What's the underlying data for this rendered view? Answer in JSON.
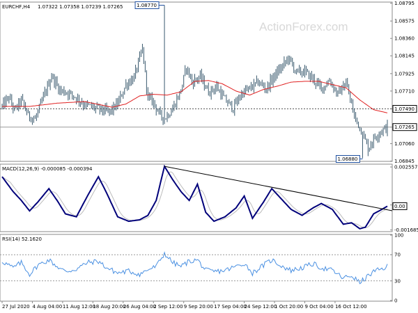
{
  "chart_data": [
    {
      "type": "candlestick",
      "title": "EURCHF,H4",
      "ohlc_text": "1.07322 1.07358 1.07239 1.07265",
      "watermark": "ActionForex.com",
      "ylim": [
        1.0685,
        1.088
      ],
      "y_ticks": [
        "1.08795",
        "1.08575",
        "1.08360",
        "1.08145",
        "1.07925",
        "1.07710",
        "1.07490",
        "1.07265",
        "1.07060",
        "1.06845"
      ],
      "y_tick_values": [
        1.08795,
        1.08575,
        1.0836,
        1.08145,
        1.07925,
        1.0771,
        1.0749,
        1.07265,
        1.0706,
        1.06845
      ],
      "high_label": "1.08770",
      "high_label_value": 1.0877,
      "low_label": "1.06880",
      "low_label_value": 1.0688,
      "level_label": "1.07490",
      "level_value": 1.0749,
      "current_label": "1.07265",
      "current_value": 1.07265,
      "close_keypoints": [
        [
          0,
          1.0752
        ],
        [
          5,
          1.0763
        ],
        [
          9,
          1.0747
        ],
        [
          14,
          1.076
        ],
        [
          19,
          1.0741
        ],
        [
          24,
          1.0736
        ],
        [
          30,
          1.0763
        ],
        [
          36,
          1.079
        ],
        [
          42,
          1.0772
        ],
        [
          48,
          1.0769
        ],
        [
          54,
          1.0763
        ],
        [
          60,
          1.0754
        ],
        [
          66,
          1.0751
        ],
        [
          72,
          1.0748
        ],
        [
          78,
          1.0745
        ],
        [
          84,
          1.0755
        ],
        [
          90,
          1.0779
        ],
        [
          96,
          1.0788
        ],
        [
          102,
          1.0823
        ],
        [
          106,
          1.0762
        ],
        [
          110,
          1.0758
        ],
        [
          114,
          1.0743
        ],
        [
          118,
          1.0737
        ],
        [
          124,
          1.0749
        ],
        [
          130,
          1.0772
        ],
        [
          134,
          1.0801
        ],
        [
          138,
          1.0782
        ],
        [
          144,
          1.0789
        ],
        [
          150,
          1.077
        ],
        [
          156,
          1.0776
        ],
        [
          162,
          1.076
        ],
        [
          168,
          1.075
        ],
        [
          174,
          1.0768
        ],
        [
          180,
          1.0774
        ],
        [
          186,
          1.0782
        ],
        [
          192,
          1.0774
        ],
        [
          198,
          1.079
        ],
        [
          204,
          1.0802
        ],
        [
          208,
          1.0812
        ],
        [
          214,
          1.0794
        ],
        [
          220,
          1.0795
        ],
        [
          226,
          1.0786
        ],
        [
          232,
          1.0774
        ],
        [
          238,
          1.0784
        ],
        [
          244,
          1.0767
        ],
        [
          250,
          1.0781
        ],
        [
          256,
          1.074
        ],
        [
          262,
          1.0719
        ],
        [
          266,
          1.07
        ],
        [
          270,
          1.0712
        ],
        [
          274,
          1.072
        ],
        [
          278,
          1.0724
        ],
        [
          280,
          1.07265
        ]
      ],
      "ma_keypoints": [
        [
          0,
          1.0752
        ],
        [
          20,
          1.0752
        ],
        [
          40,
          1.0756
        ],
        [
          60,
          1.0758
        ],
        [
          80,
          1.0751
        ],
        [
          90,
          1.0755
        ],
        [
          100,
          1.0765
        ],
        [
          110,
          1.0767
        ],
        [
          120,
          1.0766
        ],
        [
          130,
          1.077
        ],
        [
          140,
          1.0783
        ],
        [
          150,
          1.0784
        ],
        [
          160,
          1.078
        ],
        [
          170,
          1.0771
        ],
        [
          180,
          1.0766
        ],
        [
          190,
          1.0773
        ],
        [
          200,
          1.0777
        ],
        [
          210,
          1.0782
        ],
        [
          220,
          1.0783
        ],
        [
          230,
          1.0783
        ],
        [
          240,
          1.0779
        ],
        [
          250,
          1.0775
        ],
        [
          260,
          1.076
        ],
        [
          270,
          1.0748
        ],
        [
          280,
          1.0744
        ]
      ]
    },
    {
      "type": "line",
      "title": "MACD(12,26,9) -0.000085 -0.000394",
      "ylim": [
        -0.00175,
        0.0027
      ],
      "y_ticks": [
        "0.002557",
        "0.00",
        "-0.001685"
      ],
      "y_tick_values": [
        0.002557,
        0.0,
        -0.001685
      ],
      "current_label": "0.00",
      "current_value": -8.5e-05,
      "macd_keypoints": [
        [
          0,
          0.0019
        ],
        [
          8,
          0.0009
        ],
        [
          14,
          0.0003
        ],
        [
          20,
          -0.0004
        ],
        [
          26,
          0.0002
        ],
        [
          34,
          0.0011
        ],
        [
          40,
          0.0003
        ],
        [
          46,
          -0.0006
        ],
        [
          54,
          -0.0008
        ],
        [
          62,
          0.0006
        ],
        [
          70,
          0.0019
        ],
        [
          76,
          0.0008
        ],
        [
          84,
          -0.0008
        ],
        [
          92,
          -0.0011
        ],
        [
          100,
          -0.001
        ],
        [
          106,
          -0.0007
        ],
        [
          112,
          0.0003
        ],
        [
          118,
          0.0026
        ],
        [
          124,
          0.0017
        ],
        [
          130,
          0.0009
        ],
        [
          136,
          0.0003
        ],
        [
          142,
          0.0014
        ],
        [
          148,
          -0.0005
        ],
        [
          154,
          -0.0011
        ],
        [
          162,
          -0.0008
        ],
        [
          170,
          -0.0002
        ],
        [
          176,
          0.0006
        ],
        [
          182,
          -0.0009
        ],
        [
          190,
          0.0002
        ],
        [
          196,
          0.0011
        ],
        [
          204,
          0.0003
        ],
        [
          210,
          -0.0003
        ],
        [
          218,
          -0.0007
        ],
        [
          226,
          -0.0002
        ],
        [
          232,
          0.0001
        ],
        [
          240,
          -0.0003
        ],
        [
          248,
          -0.0013
        ],
        [
          254,
          -0.0012
        ],
        [
          260,
          -0.0016
        ],
        [
          264,
          -0.0015
        ],
        [
          270,
          -0.0006
        ],
        [
          276,
          -0.0003
        ],
        [
          280,
          -8.5e-05
        ]
      ],
      "signal_lag": 3,
      "trendline": [
        [
          118,
          0.0026
        ],
        [
          280,
          -0.00025
        ]
      ]
    },
    {
      "type": "line",
      "title": "RSI(14) 52.1620",
      "ylim": [
        0,
        100
      ],
      "y_ticks": [
        "100",
        "70",
        "30",
        "0"
      ],
      "y_tick_values": [
        100,
        70,
        30,
        0
      ],
      "rsi_keypoints": [
        [
          0,
          60
        ],
        [
          8,
          50
        ],
        [
          14,
          58
        ],
        [
          20,
          40
        ],
        [
          26,
          54
        ],
        [
          34,
          62
        ],
        [
          40,
          52
        ],
        [
          46,
          44
        ],
        [
          54,
          48
        ],
        [
          62,
          58
        ],
        [
          70,
          60
        ],
        [
          76,
          50
        ],
        [
          84,
          42
        ],
        [
          92,
          45
        ],
        [
          100,
          40
        ],
        [
          106,
          47
        ],
        [
          112,
          52
        ],
        [
          118,
          72
        ],
        [
          124,
          58
        ],
        [
          130,
          52
        ],
        [
          136,
          60
        ],
        [
          142,
          62
        ],
        [
          148,
          46
        ],
        [
          154,
          44
        ],
        [
          162,
          46
        ],
        [
          170,
          52
        ],
        [
          176,
          57
        ],
        [
          182,
          42
        ],
        [
          190,
          54
        ],
        [
          196,
          62
        ],
        [
          204,
          52
        ],
        [
          210,
          46
        ],
        [
          218,
          50
        ],
        [
          226,
          56
        ],
        [
          232,
          50
        ],
        [
          240,
          46
        ],
        [
          248,
          34
        ],
        [
          254,
          38
        ],
        [
          260,
          27
        ],
        [
          264,
          34
        ],
        [
          270,
          44
        ],
        [
          276,
          48
        ],
        [
          280,
          52.16
        ]
      ]
    }
  ],
  "x_axis": {
    "n_bars": 281,
    "labels": [
      "27 Jul 2020",
      "4 Aug 04:00",
      "11 Aug 12:00",
      "18 Aug 20:00",
      "26 Aug 04:00",
      "2 Sep 12:00",
      "9 Sep 20:00",
      "17 Sep 04:00",
      "24 Sep 12:00",
      "1 Oct 20:00",
      "9 Oct 04:00",
      "16 Oct 12:00"
    ],
    "label_bars": [
      0,
      22,
      44,
      66,
      88,
      110,
      132,
      154,
      176,
      198,
      220,
      242
    ]
  },
  "colors": {
    "candle": "#3a5a6e",
    "ma": "#e02020",
    "macd": "#00007a",
    "signal": "#bbbbbb",
    "trendline": "#000000",
    "rsi": "#4a90e2",
    "grid": "#888888",
    "label_box": "#1e4fa0",
    "current_box": "#000000"
  }
}
